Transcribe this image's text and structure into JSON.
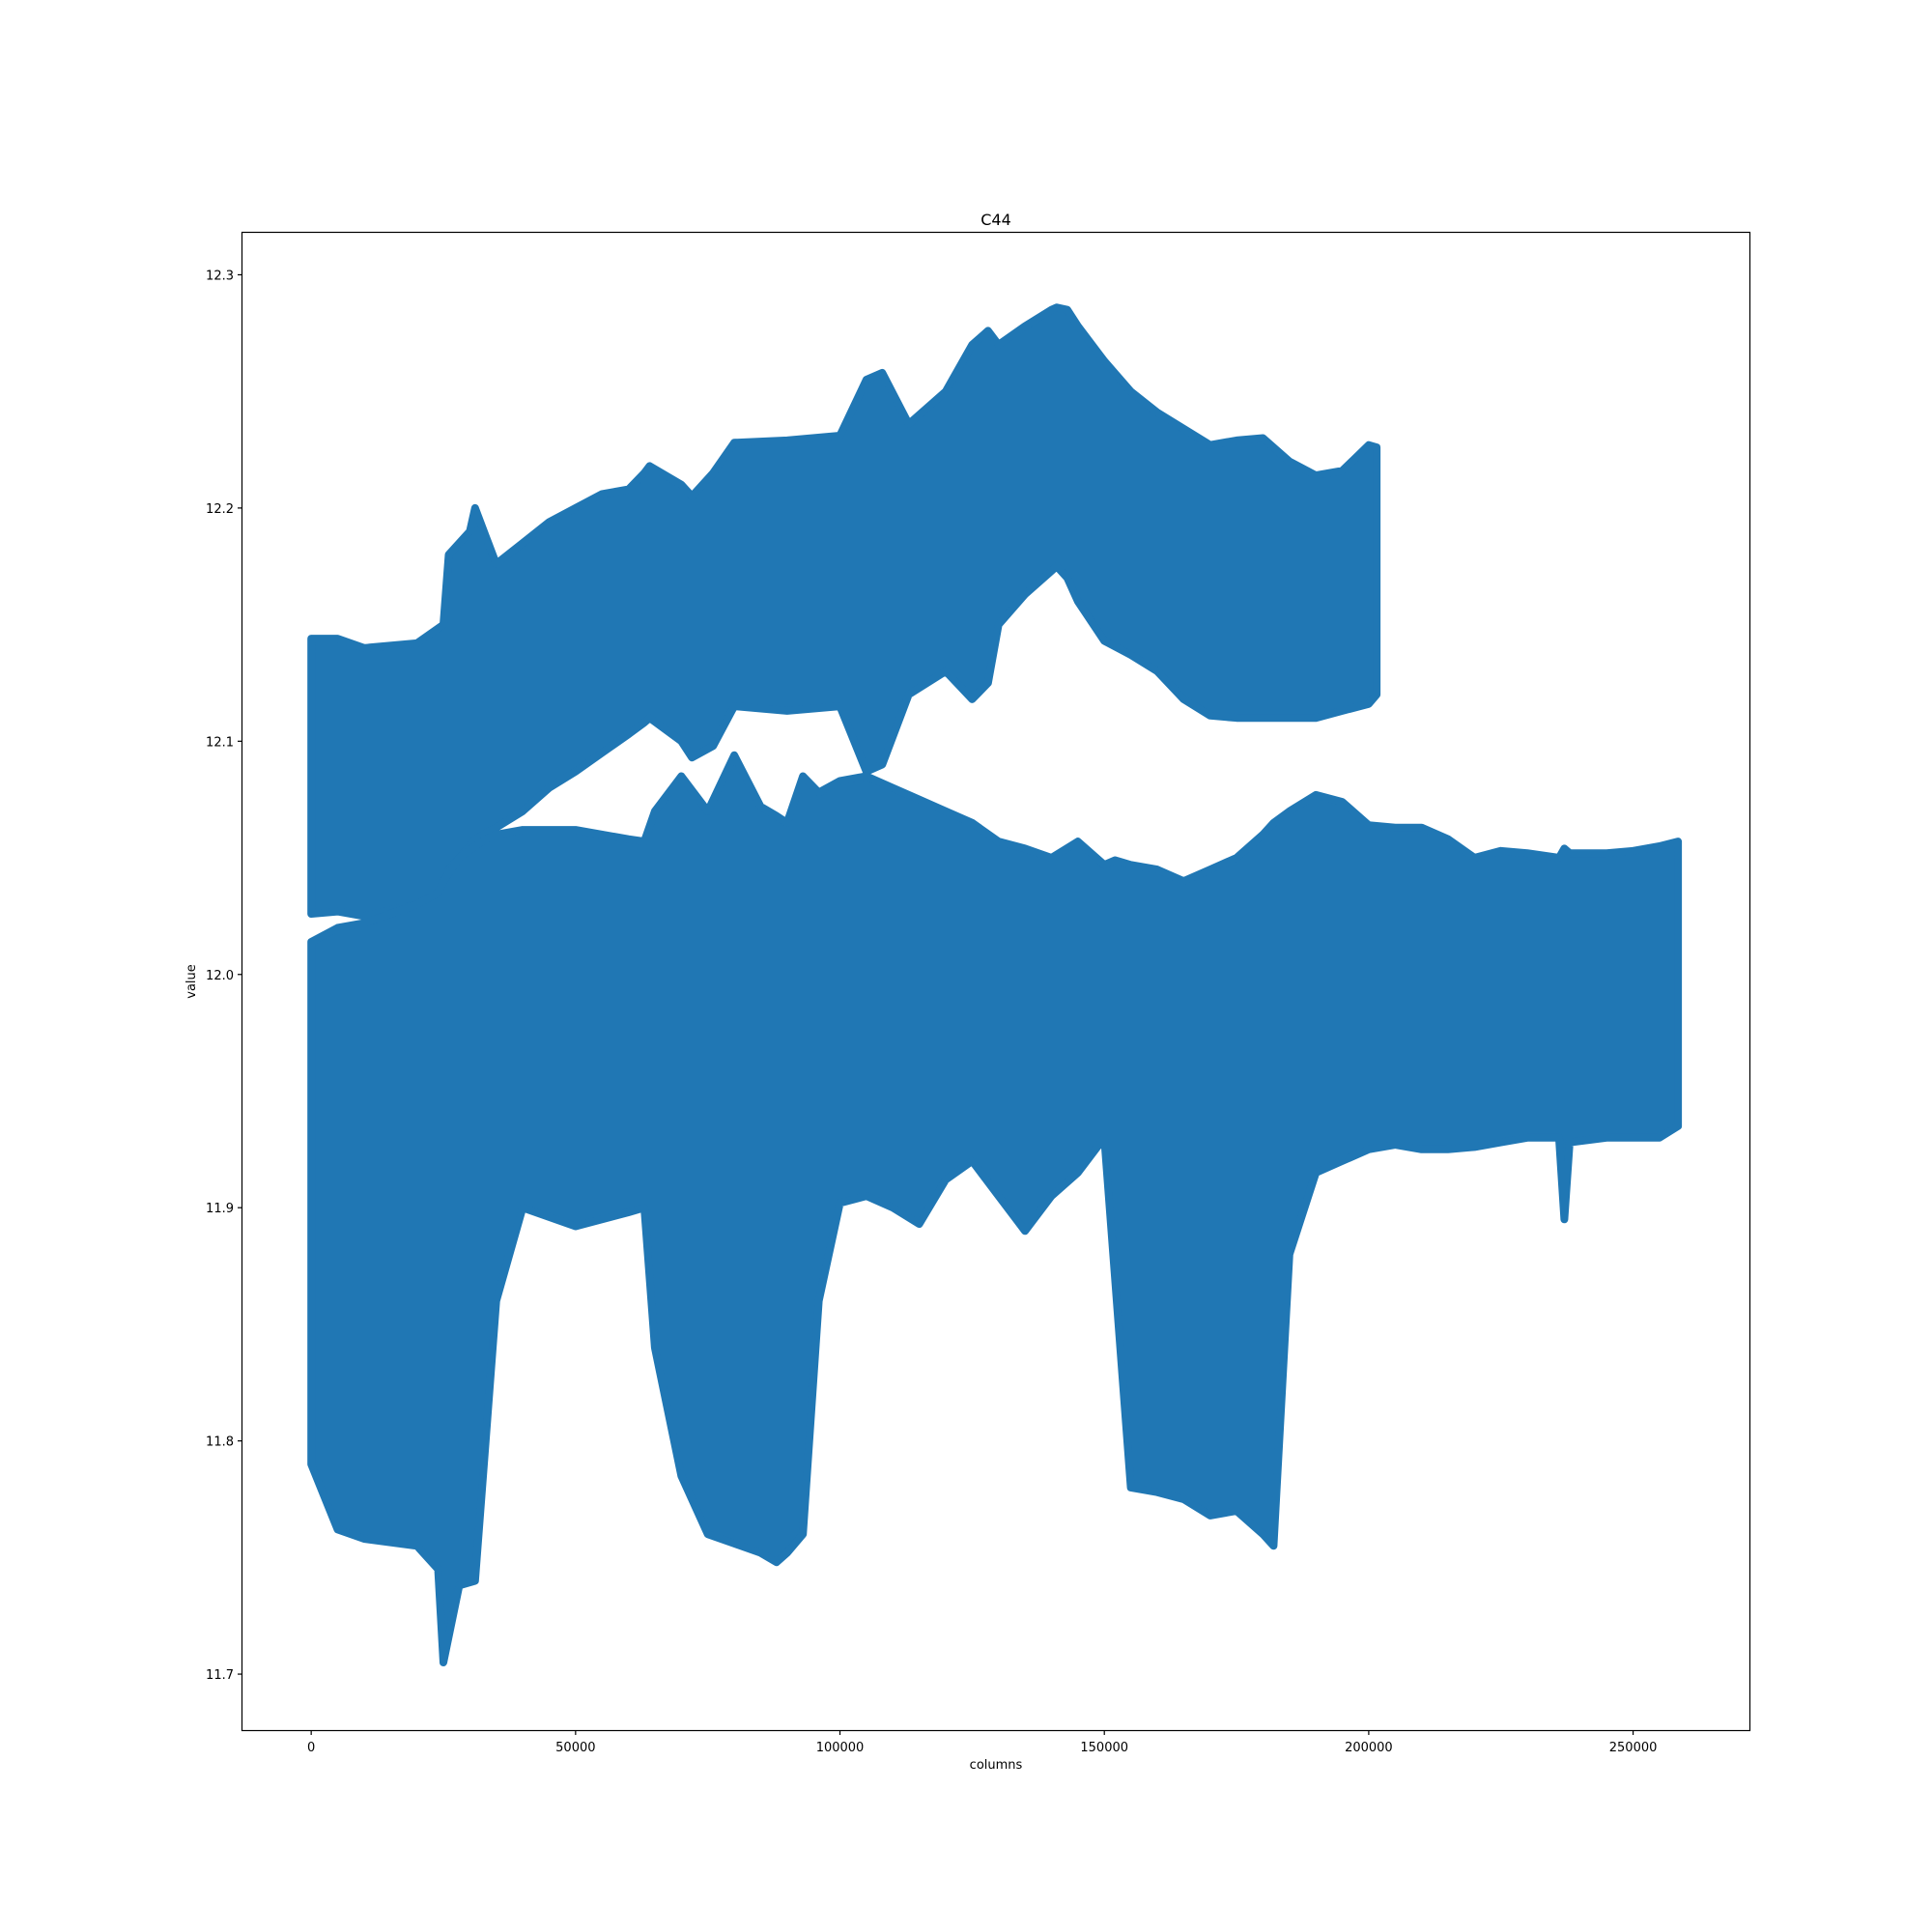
{
  "chart_data": {
    "type": "scatter",
    "title": "C44",
    "xlabel": "columns",
    "ylabel": "value",
    "xlim": [
      -13000,
      272000
    ],
    "ylim": [
      11.676,
      12.318
    ],
    "xticks": [
      0,
      50000,
      100000,
      150000,
      200000,
      250000
    ],
    "yticks": [
      11.7,
      11.8,
      11.9,
      12.0,
      12.1,
      12.2,
      12.3
    ],
    "grid": false,
    "legend": "none",
    "color": "#2077b4",
    "series": [
      {
        "band": "upper",
        "x": [
          0,
          5000,
          10000,
          20000,
          25000,
          26000,
          30000,
          31000,
          35000,
          40000,
          45000,
          50000,
          55000,
          60000,
          63000,
          64000,
          70000,
          72000,
          76000,
          80000,
          90000,
          100000,
          105000,
          108000,
          113000,
          120000,
          125000,
          128000,
          130000,
          135000,
          140000,
          141000,
          143000,
          145000,
          150000,
          155000,
          160000,
          165000,
          170000,
          175000,
          180000,
          185000,
          190000,
          195000,
          200000,
          201500
        ],
        "y_max": [
          12.144,
          12.144,
          12.14,
          12.142,
          12.15,
          12.18,
          12.19,
          12.2,
          12.176,
          12.185,
          12.194,
          12.2,
          12.206,
          12.208,
          12.215,
          12.218,
          12.21,
          12.205,
          12.215,
          12.228,
          12.229,
          12.231,
          12.255,
          12.258,
          12.236,
          12.25,
          12.27,
          12.276,
          12.27,
          12.278,
          12.285,
          12.286,
          12.285,
          12.278,
          12.263,
          12.25,
          12.241,
          12.234,
          12.227,
          12.229,
          12.23,
          12.22,
          12.214,
          12.216,
          12.227,
          12.226
        ],
        "y_min": [
          12.026,
          12.027,
          12.025,
          12.03,
          12.034,
          12.045,
          12.055,
          12.058,
          12.063,
          12.07,
          12.08,
          12.087,
          12.095,
          12.103,
          12.108,
          12.11,
          12.1,
          12.093,
          12.098,
          12.115,
          12.113,
          12.115,
          12.087,
          12.09,
          12.12,
          12.13,
          12.118,
          12.125,
          12.15,
          12.163,
          12.173,
          12.175,
          12.17,
          12.16,
          12.143,
          12.137,
          12.13,
          12.118,
          12.111,
          12.11,
          12.11,
          12.11,
          12.11,
          12.113,
          12.116,
          12.12
        ]
      },
      {
        "band": "lower",
        "x": [
          0,
          5000,
          10000,
          20000,
          24000,
          25000,
          28000,
          31000,
          33000,
          35000,
          40000,
          50000,
          60000,
          63000,
          65000,
          70000,
          75000,
          80000,
          85000,
          88000,
          90000,
          93000,
          96000,
          100000,
          105000,
          110000,
          115000,
          120000,
          125000,
          130000,
          135000,
          140000,
          145000,
          150000,
          152000,
          155000,
          160000,
          165000,
          170000,
          175000,
          180000,
          182000,
          185000,
          190000,
          195000,
          200000,
          205000,
          210000,
          215000,
          220000,
          225000,
          230000,
          236000,
          237000,
          238000,
          245000,
          250000,
          255000,
          258500
        ],
        "y_max": [
          12.014,
          12.02,
          12.022,
          12.03,
          12.035,
          12.04,
          12.05,
          12.055,
          12.058,
          12.06,
          12.062,
          12.062,
          12.058,
          12.057,
          12.07,
          12.085,
          12.07,
          12.094,
          12.072,
          12.068,
          12.065,
          12.085,
          12.078,
          12.083,
          12.085,
          12.08,
          12.075,
          12.07,
          12.065,
          12.057,
          12.054,
          12.05,
          12.057,
          12.047,
          12.049,
          12.047,
          12.045,
          12.04,
          12.045,
          12.05,
          12.06,
          12.065,
          12.07,
          12.077,
          12.074,
          12.064,
          12.063,
          12.063,
          12.058,
          12.05,
          12.053,
          12.052,
          12.05,
          12.054,
          12.052,
          12.052,
          12.053,
          12.055,
          12.057
        ],
        "y_min": [
          11.79,
          11.762,
          11.758,
          11.755,
          11.745,
          11.705,
          11.738,
          11.74,
          11.8,
          11.86,
          11.9,
          11.892,
          11.898,
          11.9,
          11.84,
          11.785,
          11.76,
          11.756,
          11.752,
          11.748,
          11.752,
          11.76,
          11.86,
          11.902,
          11.905,
          11.9,
          11.893,
          11.912,
          11.92,
          11.905,
          11.89,
          11.905,
          11.915,
          11.93,
          11.87,
          11.78,
          11.778,
          11.775,
          11.768,
          11.77,
          11.76,
          11.755,
          11.88,
          11.915,
          11.92,
          11.925,
          11.927,
          11.925,
          11.925,
          11.926,
          11.928,
          11.93,
          11.93,
          11.895,
          11.928,
          11.93,
          11.93,
          11.93,
          11.935
        ]
      }
    ]
  }
}
